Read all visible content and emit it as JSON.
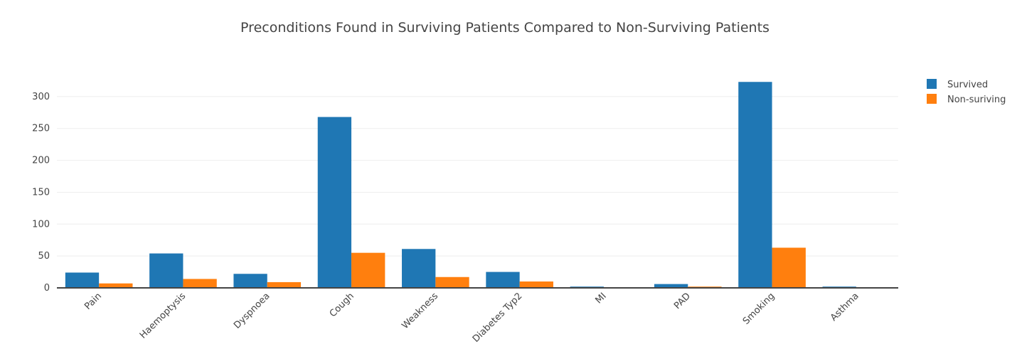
{
  "chart_data": {
    "type": "bar",
    "title": "Preconditions Found in Surviving Patients Compared to Non-Surviving Patients",
    "xlabel": "",
    "ylabel": "",
    "categories": [
      "Pain",
      "Haemoptysis",
      "Dyspnoea",
      "Cough",
      "Weakness",
      "Diabetes Typ2",
      "MI",
      "PAD",
      "Smoking",
      "Asthma"
    ],
    "series": [
      {
        "name": "Survived",
        "color": "#1f77b4",
        "values": [
          24,
          54,
          22,
          268,
          61,
          25,
          2,
          6,
          323,
          2
        ]
      },
      {
        "name": "Non-suriving",
        "color": "#ff7f0e",
        "values": [
          7,
          14,
          9,
          55,
          17,
          10,
          0,
          2,
          63,
          0
        ]
      }
    ],
    "ylim": [
      0,
      340
    ],
    "yticks": [
      0,
      50,
      100,
      150,
      200,
      250,
      300
    ],
    "grid": true,
    "legend_position": "top-right"
  }
}
